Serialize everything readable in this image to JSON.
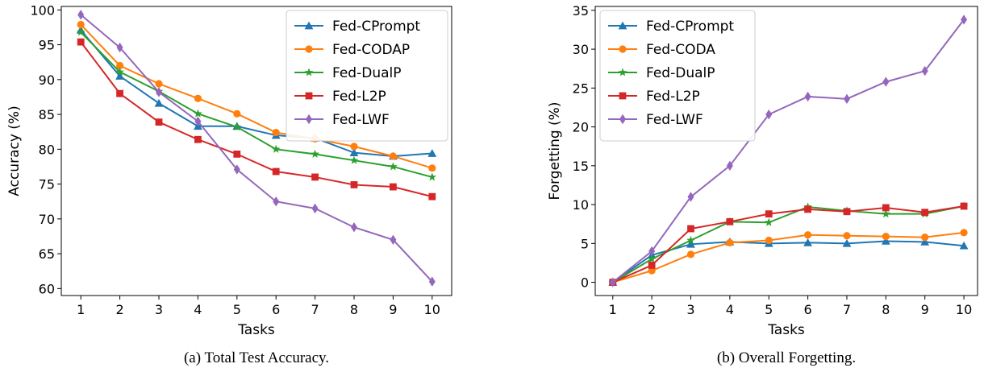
{
  "chart_data": [
    {
      "type": "line",
      "caption": "(a) Total Test Accuracy.",
      "xlabel": "Tasks",
      "ylabel": "Accuracy (%)",
      "x": [
        1,
        2,
        3,
        4,
        5,
        6,
        7,
        8,
        9,
        10
      ],
      "ylim": [
        59,
        100.5
      ],
      "yticks": [
        60,
        65,
        70,
        75,
        80,
        85,
        90,
        95,
        100
      ],
      "legend_position": "top-right",
      "series": [
        {
          "name": "Fed-CPrompt",
          "color": "#1f77b4",
          "marker": "triangle",
          "values": [
            97.1,
            90.5,
            86.6,
            83.3,
            83.3,
            82.0,
            81.6,
            79.5,
            79.0,
            79.4
          ]
        },
        {
          "name": "Fed-CODAP",
          "color": "#ff7f0e",
          "marker": "circle",
          "values": [
            97.9,
            92.0,
            89.4,
            87.3,
            85.1,
            82.4,
            81.5,
            80.4,
            79.0,
            77.3
          ]
        },
        {
          "name": "Fed-DualP",
          "color": "#2ca02c",
          "marker": "star",
          "values": [
            96.8,
            91.1,
            88.3,
            85.1,
            83.2,
            80.0,
            79.3,
            78.4,
            77.5,
            76.0
          ]
        },
        {
          "name": "Fed-L2P",
          "color": "#d62728",
          "marker": "square",
          "values": [
            95.4,
            88.0,
            83.9,
            81.4,
            79.3,
            76.8,
            76.0,
            74.9,
            74.6,
            73.2
          ]
        },
        {
          "name": "Fed-LWF",
          "color": "#9467bd",
          "marker": "diamond",
          "values": [
            99.3,
            94.6,
            88.2,
            84.0,
            77.1,
            72.5,
            71.5,
            68.8,
            67.0,
            61.0
          ]
        }
      ]
    },
    {
      "type": "line",
      "caption": "(b) Overall Forgetting.",
      "xlabel": "Tasks",
      "ylabel": "Forgetting (%)",
      "x": [
        1,
        2,
        3,
        4,
        5,
        6,
        7,
        8,
        9,
        10
      ],
      "ylim": [
        -1.7,
        35.5
      ],
      "yticks": [
        0,
        5,
        10,
        15,
        20,
        25,
        30,
        35
      ],
      "legend_position": "top-left",
      "series": [
        {
          "name": "Fed-CPrompt",
          "color": "#1f77b4",
          "marker": "triangle",
          "values": [
            0.0,
            3.5,
            4.9,
            5.2,
            5.0,
            5.1,
            5.0,
            5.3,
            5.2,
            4.7
          ]
        },
        {
          "name": "Fed-CODA",
          "color": "#ff7f0e",
          "marker": "circle",
          "values": [
            0.0,
            1.5,
            3.6,
            5.1,
            5.4,
            6.1,
            6.0,
            5.9,
            5.8,
            6.4
          ]
        },
        {
          "name": "Fed-DualP",
          "color": "#2ca02c",
          "marker": "star",
          "values": [
            0.0,
            3.0,
            5.4,
            7.8,
            7.7,
            9.7,
            9.2,
            8.8,
            8.8,
            9.8
          ]
        },
        {
          "name": "Fed-L2P",
          "color": "#d62728",
          "marker": "square",
          "values": [
            0.0,
            2.2,
            6.9,
            7.8,
            8.8,
            9.4,
            9.1,
            9.6,
            9.0,
            9.8
          ]
        },
        {
          "name": "Fed-LWF",
          "color": "#9467bd",
          "marker": "diamond",
          "values": [
            0.0,
            4.0,
            11.0,
            15.0,
            21.6,
            23.9,
            23.6,
            25.8,
            27.2,
            33.8
          ]
        }
      ]
    }
  ]
}
